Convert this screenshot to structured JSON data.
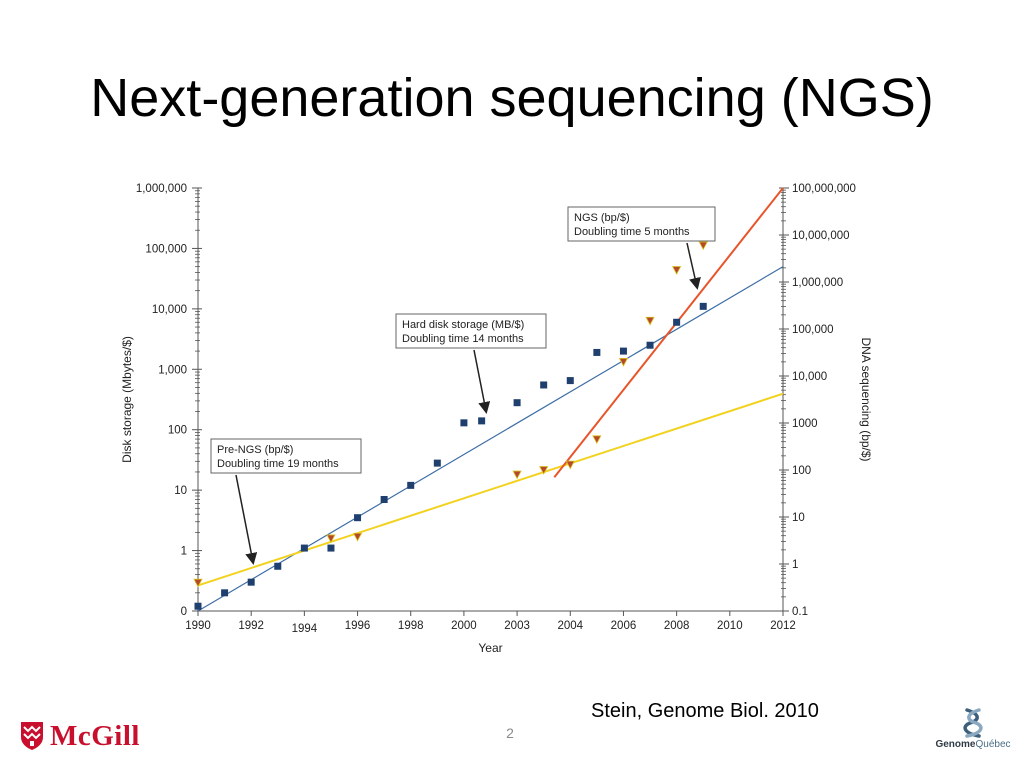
{
  "slide": {
    "title": "Next-generation sequencing (NGS)",
    "citation": "Stein, Genome Biol. 2010",
    "page_number": "2",
    "logos": {
      "left": "McGill",
      "right_bold": "Genome",
      "right_light": "Québec"
    }
  },
  "chart_data": {
    "type": "scatter",
    "xlabel": "Year",
    "ylabel_left": "Disk storage (Mbytes/$)",
    "ylabel_right": "DNA sequencing (bp/$)",
    "x_ticks": [
      "1990",
      "1992",
      "1994",
      "1996",
      "1998",
      "2000",
      "2003",
      "2004",
      "2006",
      "2008",
      "2010",
      "2012"
    ],
    "y_left_scale": "log",
    "y_left_ticks": [
      "0",
      "1",
      "10",
      "100",
      "1,000",
      "10,000",
      "100,000",
      "1,000,000"
    ],
    "y_right_scale": "log",
    "y_right_ticks": [
      "0.1",
      "1",
      "10",
      "100",
      "1000",
      "10,000",
      "100,000",
      "1,000,000",
      "10,000,000",
      "100,000,000"
    ],
    "grid": false,
    "colors": {
      "disk": "#1f3f6e",
      "disk_line": "#3e6fa6",
      "ngs_line": "#e8552a",
      "pre_ngs_line": "#f2d21e",
      "sequencing_marker_fill": "#b5472a",
      "sequencing_marker_edge": "#d8c21f",
      "axis": "#555555"
    },
    "series": [
      {
        "name": "Hard disk storage (MB/$)",
        "axis": "left",
        "marker": "square",
        "points": [
          [
            "1990",
            0.12
          ],
          [
            "1991",
            0.2
          ],
          [
            "1992",
            0.3
          ],
          [
            "1993",
            0.55
          ],
          [
            "1994",
            1.1
          ],
          [
            "1995",
            1.1
          ],
          [
            "1996",
            3.5
          ],
          [
            "1997",
            7
          ],
          [
            "1998",
            12
          ],
          [
            "1999",
            28
          ],
          [
            "2000",
            130
          ],
          [
            "2001",
            140
          ],
          [
            "2003",
            280
          ],
          [
            "2003.5",
            550
          ],
          [
            "2004",
            650
          ],
          [
            "2005",
            1900
          ],
          [
            "2006",
            2000
          ],
          [
            "2007",
            2500
          ],
          [
            "2008",
            6000
          ],
          [
            "2009",
            11000
          ]
        ]
      },
      {
        "name": "DNA sequencing (bp/$)",
        "axis": "right",
        "marker": "triangle-down",
        "points": [
          [
            "1990",
            0.4
          ],
          [
            "1995",
            3.5
          ],
          [
            "1996",
            3.8
          ],
          [
            "2003",
            80
          ],
          [
            "2003.5",
            100
          ],
          [
            "2004",
            130
          ],
          [
            "2005",
            450
          ],
          [
            "2006",
            20000
          ],
          [
            "2007",
            150000
          ],
          [
            "2008",
            1800000
          ],
          [
            "2009",
            6000000
          ]
        ]
      }
    ],
    "trend_lines": [
      {
        "name": "Hard disk storage trend",
        "axis": "left",
        "from": [
          "1990",
          0.1
        ],
        "to": [
          "2012",
          50000
        ]
      },
      {
        "name": "Pre-NGS trend",
        "axis": "right",
        "from": [
          "1990",
          0.35
        ],
        "to": [
          "2012",
          4200
        ]
      },
      {
        "name": "NGS trend",
        "axis": "right",
        "from": [
          "2003.7",
          70
        ],
        "to": [
          "2012",
          100000000
        ]
      }
    ],
    "annotations": [
      {
        "lines": [
          "NGS (bp/$)",
          "Doubling time 5 months"
        ]
      },
      {
        "lines": [
          "Hard disk storage (MB/$)",
          "Doubling time 14 months"
        ]
      },
      {
        "lines": [
          "Pre-NGS (bp/$)",
          "Doubling time 19 months"
        ]
      }
    ]
  }
}
